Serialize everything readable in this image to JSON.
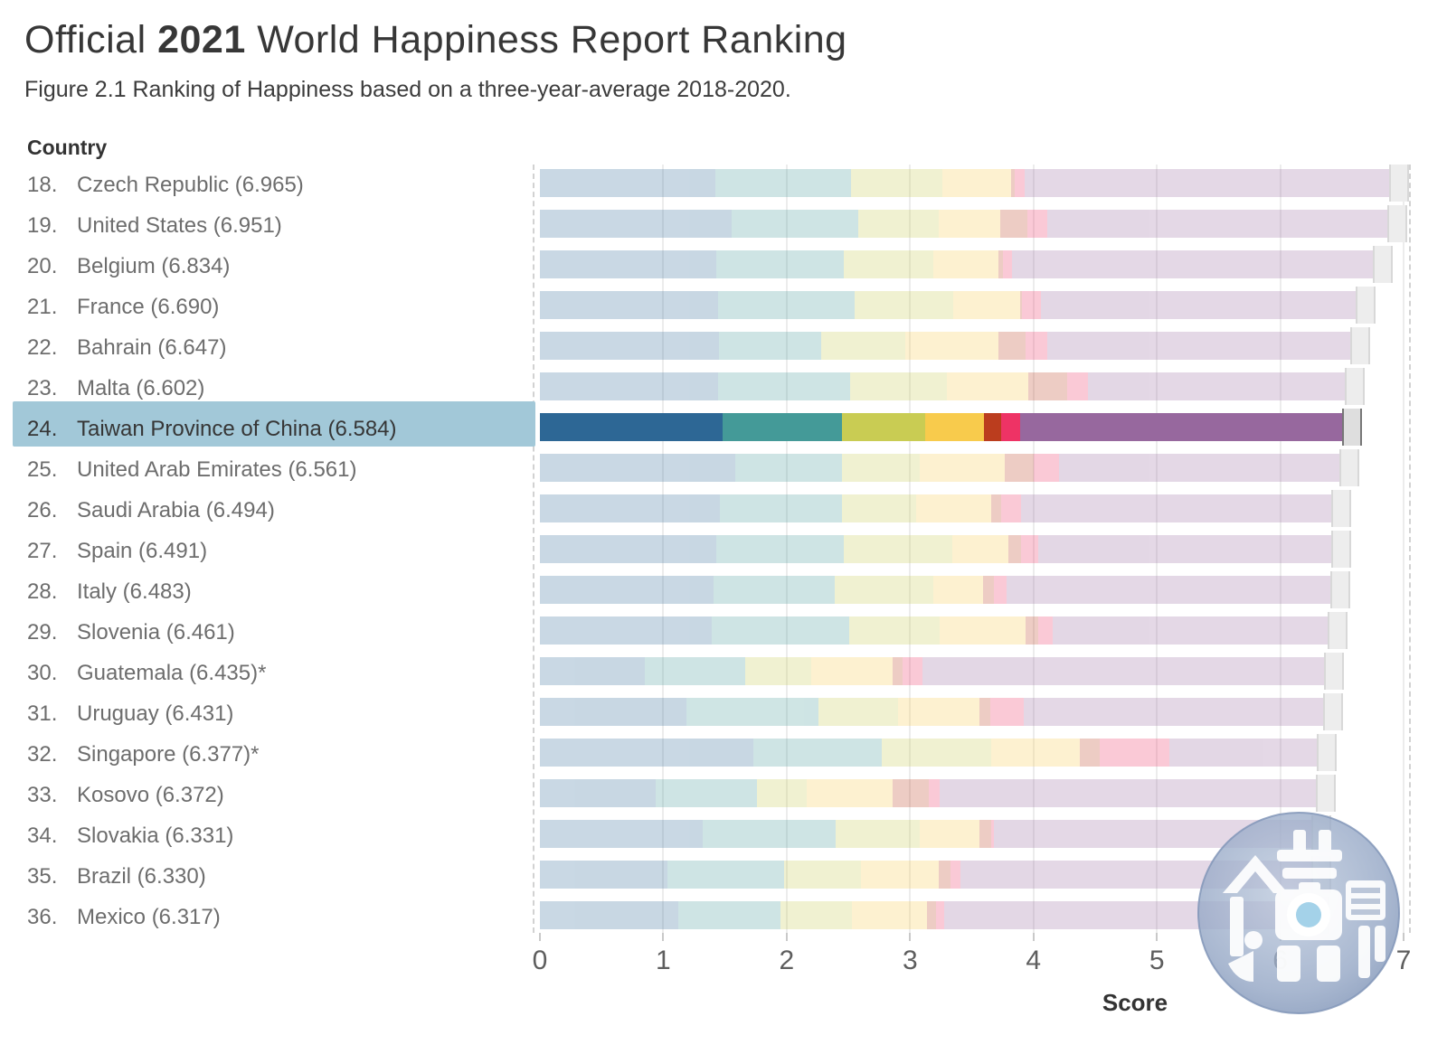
{
  "title": {
    "prefix": "Official ",
    "year": "2021",
    "rest": " World Happiness Report Ranking"
  },
  "subtitle": "Figure 2.1 Ranking of Happiness based on a three-year-average 2018-2020.",
  "axis": {
    "column_header": "Country",
    "xlabel": "Score",
    "ticks": [
      0,
      1,
      2,
      3,
      4,
      5,
      6,
      7
    ],
    "xlim": [
      0,
      7
    ]
  },
  "colors": {
    "segments": [
      "#2d6795",
      "#449a98",
      "#c9cc53",
      "#f8cb4c",
      "#bb3d1e",
      "#ee3365",
      "#97689e"
    ],
    "highlight_band": "#a2c8d8",
    "whisker_fill_highlight": "#dedede",
    "whisker_edge_highlight": "#777777",
    "whisker_fill_faded": "#ededed",
    "whisker_edge_faded": "#d8d8d8",
    "faded_bar_opacity": 0.26
  },
  "watermark": "mirror-weekly-logo",
  "chart_data": {
    "type": "bar",
    "orientation": "horizontal-stacked",
    "title": "Official 2021 World Happiness Report Ranking",
    "xlabel": "Score",
    "xlim": [
      0,
      7
    ],
    "grid": true,
    "series_keys": [
      "blue",
      "teal",
      "olive",
      "gold",
      "red",
      "pink",
      "purple"
    ],
    "ci_halfwidth": 0.07,
    "rows": [
      {
        "rank_display": "18.",
        "country": "Czech Republic",
        "score": 6.965,
        "display": "Czech Republic (6.965)",
        "highlighted": false,
        "segments": [
          1.42,
          1.1,
          0.74,
          0.56,
          0.03,
          0.08,
          3.035
        ]
      },
      {
        "rank_display": "19.",
        "country": "United States",
        "score": 6.951,
        "display": "United States (6.951)",
        "highlighted": false,
        "segments": [
          1.55,
          1.03,
          0.65,
          0.5,
          0.22,
          0.16,
          2.841
        ]
      },
      {
        "rank_display": "20.",
        "country": "Belgium",
        "score": 6.834,
        "display": "Belgium (6.834)",
        "highlighted": false,
        "segments": [
          1.43,
          1.03,
          0.73,
          0.53,
          0.03,
          0.08,
          3.004
        ]
      },
      {
        "rank_display": "21.",
        "country": "France",
        "score": 6.69,
        "display": "France (6.690)",
        "highlighted": false,
        "segments": [
          1.44,
          1.11,
          0.8,
          0.54,
          0.02,
          0.15,
          2.63
        ]
      },
      {
        "rank_display": "22.",
        "country": "Bahrain",
        "score": 6.647,
        "display": "Bahrain (6.647)",
        "highlighted": false,
        "segments": [
          1.45,
          0.83,
          0.68,
          0.76,
          0.22,
          0.17,
          2.537
        ]
      },
      {
        "rank_display": "23.",
        "country": "Malta",
        "score": 6.602,
        "display": "Malta (6.602)",
        "highlighted": false,
        "segments": [
          1.44,
          1.07,
          0.79,
          0.66,
          0.31,
          0.17,
          2.162
        ]
      },
      {
        "rank_display": "24.",
        "country": "Taiwan Province of China",
        "score": 6.584,
        "display": "Taiwan Province of China (6.584)",
        "highlighted": true,
        "segments": [
          1.48,
          0.97,
          0.67,
          0.48,
          0.14,
          0.15,
          2.694
        ]
      },
      {
        "rank_display": "25.",
        "country": "United Arab Emirates",
        "score": 6.561,
        "display": "United Arab Emirates (6.561)",
        "highlighted": false,
        "segments": [
          1.58,
          0.87,
          0.63,
          0.69,
          0.23,
          0.21,
          2.351
        ]
      },
      {
        "rank_display": "26.",
        "country": "Saudi Arabia",
        "score": 6.494,
        "display": "Saudi Arabia (6.494)",
        "highlighted": false,
        "segments": [
          1.46,
          0.99,
          0.6,
          0.61,
          0.08,
          0.16,
          2.594
        ]
      },
      {
        "rank_display": "27.",
        "country": "Spain",
        "score": 6.491,
        "display": "Spain (6.491)",
        "highlighted": false,
        "segments": [
          1.43,
          1.03,
          0.88,
          0.46,
          0.1,
          0.14,
          2.451
        ]
      },
      {
        "rank_display": "28.",
        "country": "Italy",
        "score": 6.483,
        "display": "Italy (6.483)",
        "highlighted": false,
        "segments": [
          1.41,
          0.98,
          0.8,
          0.4,
          0.09,
          0.1,
          2.703
        ]
      },
      {
        "rank_display": "29.",
        "country": "Slovenia",
        "score": 6.461,
        "display": "Slovenia (6.461)",
        "highlighted": false,
        "segments": [
          1.39,
          1.12,
          0.73,
          0.7,
          0.1,
          0.12,
          2.301
        ]
      },
      {
        "rank_display": "30.",
        "country": "Guatemala",
        "score": 6.435,
        "display": "Guatemala (6.435)*",
        "highlighted": false,
        "segments": [
          0.85,
          0.81,
          0.54,
          0.66,
          0.08,
          0.16,
          3.335
        ]
      },
      {
        "rank_display": "31.",
        "country": "Uruguay",
        "score": 6.431,
        "display": "Uruguay (6.431)",
        "highlighted": false,
        "segments": [
          1.19,
          1.07,
          0.64,
          0.66,
          0.09,
          0.27,
          2.511
        ]
      },
      {
        "rank_display": "32.",
        "country": "Singapore",
        "score": 6.377,
        "display": "Singapore (6.377)*",
        "highlighted": false,
        "segments": [
          1.73,
          1.04,
          0.89,
          0.72,
          0.16,
          0.56,
          1.277
        ]
      },
      {
        "rank_display": "33.",
        "country": "Kosovo",
        "score": 6.372,
        "display": "Kosovo (6.372)",
        "highlighted": false,
        "segments": [
          0.94,
          0.82,
          0.4,
          0.7,
          0.29,
          0.09,
          3.132
        ]
      },
      {
        "rank_display": "34.",
        "country": "Slovakia",
        "score": 6.331,
        "display": "Slovakia (6.331)",
        "highlighted": false,
        "segments": [
          1.32,
          1.08,
          0.68,
          0.48,
          0.1,
          0.02,
          2.651
        ]
      },
      {
        "rank_display": "35.",
        "country": "Brazil",
        "score": 6.33,
        "display": "Brazil (6.330)",
        "highlighted": false,
        "segments": [
          1.03,
          0.95,
          0.62,
          0.63,
          0.1,
          0.08,
          2.92
        ]
      },
      {
        "rank_display": "36.",
        "country": "Mexico",
        "score": 6.317,
        "display": "Mexico (6.317)",
        "highlighted": false,
        "segments": [
          1.12,
          0.83,
          0.58,
          0.61,
          0.07,
          0.07,
          3.037
        ]
      }
    ]
  }
}
